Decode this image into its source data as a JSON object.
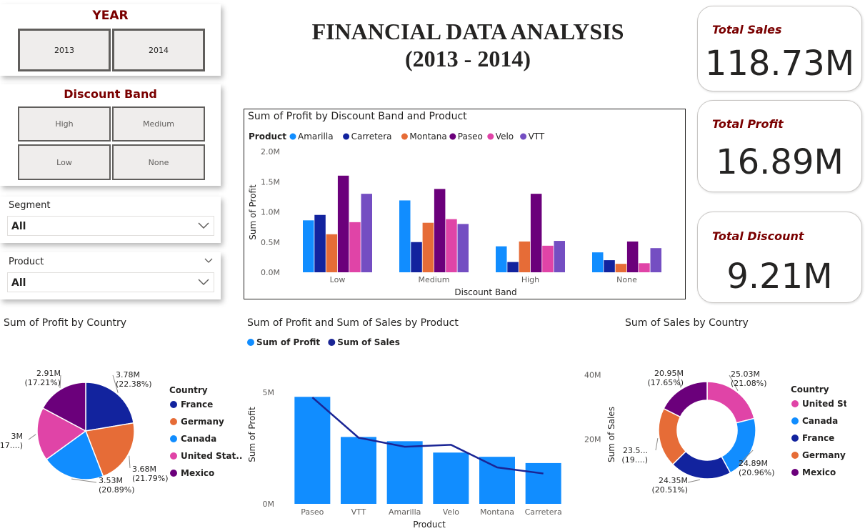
{
  "main_title": {
    "line1": "FINANCIAL DATA ANALYSIS",
    "line2": "(2013 - 2014)"
  },
  "year_slicer": {
    "title": "YEAR",
    "options": [
      "2013",
      "2014"
    ]
  },
  "discount_slicer": {
    "title": "Discount Band",
    "options": [
      "High",
      "Medium",
      "Low",
      "None"
    ]
  },
  "segment_filter": {
    "label": "Segment",
    "value": "All"
  },
  "product_filter": {
    "label": "Product",
    "value": "All"
  },
  "kpis": [
    {
      "label": "Total Sales",
      "value": "118.73M"
    },
    {
      "label": "Total Profit",
      "value": "16.89M"
    },
    {
      "label": "Total Discount",
      "value": "9.21M"
    }
  ],
  "colors": {
    "accent_red": "#7a0000",
    "amarilla": "#118dff",
    "carretera": "#12239e",
    "montana": "#e66c37",
    "paseo": "#6b007b",
    "velo": "#e044a7",
    "vtt": "#744ec2",
    "line": "#1a2595"
  },
  "chart_data": [
    {
      "type": "bar",
      "title": "Sum of Profit by Discount Band and Product",
      "legend_title": "Product",
      "xlabel": "Discount Band",
      "ylabel": "Sum of Profit",
      "ylim": [
        0,
        2000000
      ],
      "yticks": [
        "0.0M",
        "0.5M",
        "1.0M",
        "1.5M",
        "2.0M"
      ],
      "categories": [
        "Low",
        "Medium",
        "High",
        "None"
      ],
      "series": [
        {
          "name": "Amarilla",
          "color": "#118dff",
          "values": [
            860000,
            1190000,
            430000,
            330000
          ]
        },
        {
          "name": "Carretera",
          "color": "#12239e",
          "values": [
            950000,
            500000,
            170000,
            200000
          ]
        },
        {
          "name": "Montana",
          "color": "#e66c37",
          "values": [
            630000,
            820000,
            510000,
            140000
          ]
        },
        {
          "name": "Paseo",
          "color": "#6b007b",
          "values": [
            1600000,
            1380000,
            1300000,
            510000
          ]
        },
        {
          "name": "Velo",
          "color": "#e044a7",
          "values": [
            830000,
            880000,
            440000,
            150000
          ]
        },
        {
          "name": "VTT",
          "color": "#744ec2",
          "values": [
            1300000,
            800000,
            520000,
            400000
          ]
        }
      ]
    },
    {
      "type": "pie",
      "title": "Sum of Profit by Country",
      "legend_title": "Country",
      "slices": [
        {
          "name": "France",
          "color": "#12239e",
          "value": 3.78,
          "label": "3.78M",
          "pct": "(22.38%)"
        },
        {
          "name": "Germany",
          "color": "#e66c37",
          "value": 3.68,
          "label": "3.68M",
          "pct": "(21.79%)"
        },
        {
          "name": "Canada",
          "color": "#118dff",
          "value": 3.53,
          "label": "3.53M",
          "pct": "(20.89%)"
        },
        {
          "name": "United States of America",
          "legend_label": "United Stat...",
          "color": "#e044a7",
          "value": 3.0,
          "label": "3M",
          "pct": "(17....)"
        },
        {
          "name": "Mexico",
          "color": "#6b007b",
          "value": 2.91,
          "label": "2.91M",
          "pct": "(17.21%)"
        }
      ]
    },
    {
      "type": "bar",
      "title": "Sum of Profit and Sum of Sales by Product",
      "xlabel": "Product",
      "ylabel": "Sum of Profit",
      "y2label": "Sum of Sales",
      "yticks": [
        "0M",
        "5M"
      ],
      "y2ticks": [
        "20M",
        "40M"
      ],
      "categories": [
        "Paseo",
        "VTT",
        "Amarilla",
        "Velo",
        "Montana",
        "Carretera"
      ],
      "series": [
        {
          "name": "Sum of Profit",
          "color": "#118dff",
          "kind": "bar",
          "axis": "left",
          "values": [
            4800000,
            3000000,
            2810000,
            2300000,
            2110000,
            1830000
          ]
        },
        {
          "name": "Sum of  Sales",
          "color": "#1a2595",
          "kind": "line",
          "axis": "right",
          "values": [
            33000000,
            20500000,
            17700000,
            18300000,
            11300000,
            9400000
          ]
        }
      ],
      "ylim": [
        0,
        6000000
      ],
      "y2lim": [
        0,
        48000000
      ]
    },
    {
      "type": "pie",
      "donut": true,
      "title": "Sum of Sales by Country",
      "legend_title": "Country",
      "slices": [
        {
          "name": "United States of America",
          "legend_label": "United Stat...",
          "color": "#e044a7",
          "value": 25.03,
          "label": "25.03M",
          "pct": "(21.08%)"
        },
        {
          "name": "Canada",
          "color": "#118dff",
          "value": 24.89,
          "label": "24.89M",
          "pct": "(20.96%)"
        },
        {
          "name": "France",
          "color": "#12239e",
          "value": 24.35,
          "label": "24.35M",
          "pct": "(20.51%)"
        },
        {
          "name": "Germany",
          "color": "#e66c37",
          "value": 23.5,
          "label": "23.5...",
          "pct": "(19....)"
        },
        {
          "name": "Mexico",
          "color": "#6b007b",
          "value": 20.95,
          "label": "20.95M",
          "pct": "(17.65%)"
        }
      ]
    }
  ]
}
